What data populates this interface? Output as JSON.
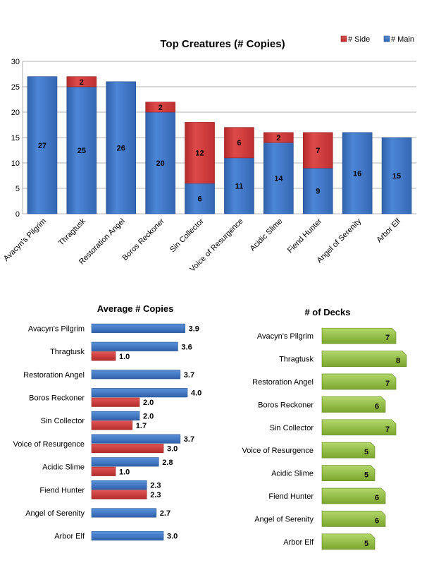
{
  "colors": {
    "main": "#3f78c8",
    "side": "#d23b3b",
    "decks": "#93bf3f",
    "grid": "#9a9a9a"
  },
  "chart_data": [
    {
      "type": "bar",
      "stacked": true,
      "title": "Top Creatures (# Copies)",
      "categories": [
        "Avacyn's Pilgrim",
        "Thragtusk",
        "Restoration Angel",
        "Boros Reckoner",
        "Sin Collector",
        "Voice of Resurgence",
        "Acidic Slime",
        "Fiend Hunter",
        "Angel of Serenity",
        "Arbor Elf"
      ],
      "series": [
        {
          "name": "# Main",
          "values": [
            27,
            25,
            26,
            20,
            6,
            11,
            14,
            9,
            16,
            15
          ]
        },
        {
          "name": "# Side",
          "values": [
            0,
            2,
            0,
            2,
            12,
            6,
            2,
            7,
            0,
            0
          ]
        }
      ],
      "ylim": [
        0,
        30
      ],
      "yticks": [
        0,
        5,
        10,
        15,
        20,
        25,
        30
      ],
      "grid": true,
      "legend": "top-right",
      "legend_entries": [
        "# Side",
        "# Main"
      ]
    },
    {
      "type": "bar",
      "orientation": "horizontal",
      "title": "Average # Copies",
      "categories": [
        "Avacyn's Pilgrim",
        "Thragtusk",
        "Restoration Angel",
        "Boros Reckoner",
        "Sin Collector",
        "Voice of Resurgence",
        "Acidic Slime",
        "Fiend Hunter",
        "Angel of Serenity",
        "Arbor Elf"
      ],
      "series": [
        {
          "name": "# Main",
          "values": [
            3.9,
            3.6,
            3.7,
            4.0,
            2.0,
            3.7,
            2.8,
            2.3,
            2.7,
            3.0
          ],
          "labels": [
            "3.9",
            "3.6",
            "3.7",
            "4.0",
            "2.0",
            "3.7",
            "2.8",
            "2.3",
            "2.7",
            "3.0"
          ]
        },
        {
          "name": "# Side",
          "values": [
            null,
            1.0,
            null,
            2.0,
            1.7,
            3.0,
            1.0,
            2.3,
            null,
            null
          ],
          "labels": [
            "",
            "1.0",
            "",
            "2.0",
            "1.7",
            "3.0",
            "1.0",
            "2.3",
            "",
            ""
          ]
        }
      ],
      "xlim": [
        0,
        4.0
      ]
    },
    {
      "type": "bar",
      "orientation": "horizontal",
      "title": "# of Decks",
      "categories": [
        "Avacyn's Pilgrim",
        "Thragtusk",
        "Restoration Angel",
        "Boros Reckoner",
        "Sin Collector",
        "Voice of Resurgence",
        "Acidic Slime",
        "Fiend Hunter",
        "Angel of Serenity",
        "Arbor Elf"
      ],
      "values": [
        7,
        8,
        7,
        6,
        7,
        5,
        5,
        6,
        6,
        5
      ],
      "labels": [
        "7",
        "8",
        "7",
        "6",
        "7",
        "5",
        "5",
        "6",
        "6",
        "5"
      ],
      "xlim": [
        0,
        8
      ]
    }
  ]
}
